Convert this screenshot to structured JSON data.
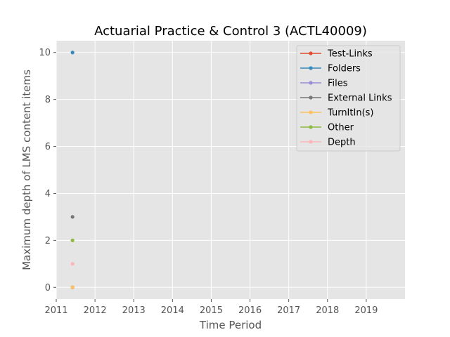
{
  "chart_data": {
    "type": "line",
    "title": "Actuarial Practice & Control 3 (ACTL40009)",
    "xlabel": "Time Period",
    "ylabel": "Maximum depth of LMS content items",
    "xlim": [
      2011,
      2020
    ],
    "ylim": [
      -0.5,
      10.5
    ],
    "xticks": [
      "2011",
      "2012",
      "2013",
      "2014",
      "2015",
      "2016",
      "2017",
      "2018",
      "2019"
    ],
    "yticks": [
      "0",
      "2",
      "4",
      "6",
      "8",
      "10"
    ],
    "grid": true,
    "legend_position": "top-right",
    "series": [
      {
        "name": "Test-Links",
        "color": "#E24A33",
        "x": [
          2011.42
        ],
        "y": [
          0
        ]
      },
      {
        "name": "Folders",
        "color": "#348ABD",
        "x": [
          2011.42
        ],
        "y": [
          10
        ]
      },
      {
        "name": "Files",
        "color": "#988ED5",
        "x": [
          2011.42
        ],
        "y": [
          0
        ]
      },
      {
        "name": "External Links",
        "color": "#777777",
        "x": [
          2011.42
        ],
        "y": [
          3
        ]
      },
      {
        "name": "TurnItIn(s)",
        "color": "#FBC15E",
        "x": [
          2011.42
        ],
        "y": [
          0
        ]
      },
      {
        "name": "Other",
        "color": "#8EBA42",
        "x": [
          2011.42
        ],
        "y": [
          2
        ]
      },
      {
        "name": "Depth",
        "color": "#FFB5B8",
        "x": [
          2011.42
        ],
        "y": [
          1
        ]
      }
    ]
  }
}
